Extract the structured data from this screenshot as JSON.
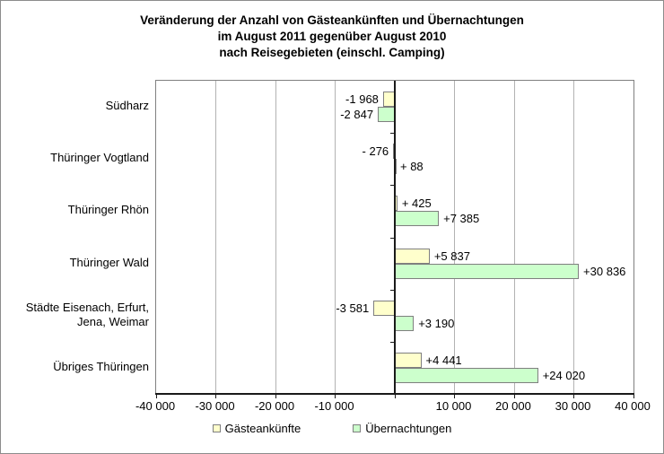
{
  "chart_data": {
    "type": "bar",
    "orientation": "horizontal",
    "title": "Veränderung der Anzahl von Gästeankünften und Übernachtungen\nim August 2011 gegenüber August 2010\nnach Reisegebieten (einschl. Camping)",
    "categories": [
      "Südharz",
      "Thüringer Vogtland",
      "Thüringer Rhön",
      "Thüringer Wald",
      "Städte Eisenach, Erfurt, Jena, Weimar",
      "Übriges Thüringen"
    ],
    "series": [
      {
        "name": "Gästeankünfte",
        "color": "#ffffcc",
        "border_color": "#7f7f7f",
        "values": [
          -1968,
          -276,
          425,
          5837,
          -3581,
          4441
        ],
        "labels": [
          "-1 968",
          "- 276",
          "+ 425",
          "+5 837",
          "-3 581",
          "+4 441"
        ]
      },
      {
        "name": "Übernachtungen",
        "color": "#ccffcc",
        "border_color": "#7f7f7f",
        "values": [
          -2847,
          88,
          7385,
          30836,
          3190,
          24020
        ],
        "labels": [
          "-2 847",
          "+ 88",
          "+7 385",
          "+30 836",
          "+3 190",
          "+24 020"
        ]
      }
    ],
    "xlim": [
      -40000,
      40000
    ],
    "xticks": [
      -40000,
      -30000,
      -20000,
      -10000,
      0,
      10000,
      20000,
      30000,
      40000
    ],
    "xtick_labels": [
      "-40 000",
      "-30 000",
      "-20 000",
      "-10 000",
      "",
      "10 000",
      "20 000",
      "30 000",
      "40 000"
    ],
    "grid": true,
    "gridline_color": "#b3b3b3",
    "axis_color": "#1a1a1a",
    "legend_position": "bottom"
  },
  "legend": {
    "items": [
      {
        "label": "Gästeankünfte",
        "color": "#ffffcc"
      },
      {
        "label": "Übernachtungen",
        "color": "#ccffcc"
      }
    ]
  }
}
